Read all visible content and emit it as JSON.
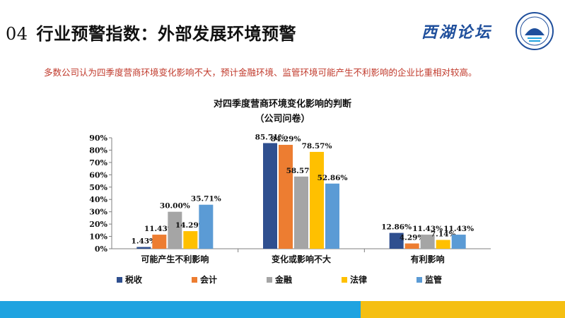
{
  "header": {
    "number": "04",
    "title": "行业预警指数：外部发展环境预警",
    "logo_text": "西湖论坛"
  },
  "subtitle": "多数公司认为四季度营商环境变化影响不大，预计金融环境、监管环境可能产生不利影响的企业比重相对较高。",
  "colors": {
    "税收": "#2f4f8f",
    "会计": "#ed7d31",
    "金融": "#a5a5a5",
    "法律": "#ffc000",
    "监管": "#5b9bd5",
    "band_blue": "#1fa3e0",
    "band_yellow": "#f5bf12"
  },
  "chart_data": {
    "type": "bar",
    "title": "对四季度营商环境变化影响的判断",
    "subtitle": "（公司问卷）",
    "categories": [
      "可能产生不利影响",
      "变化或影响不大",
      "有利影响"
    ],
    "series": [
      {
        "name": "税收",
        "values": [
          1.43,
          85.71,
          12.86
        ],
        "labels": [
          "1.43%",
          "85.71%",
          "12.86%"
        ]
      },
      {
        "name": "会计",
        "values": [
          11.43,
          84.29,
          4.29
        ],
        "labels": [
          "11.43%",
          "84.29%",
          "4.29%"
        ]
      },
      {
        "name": "金融",
        "values": [
          30.0,
          58.57,
          11.43
        ],
        "labels": [
          "30.00%",
          "58.57%",
          "11.43%"
        ]
      },
      {
        "name": "法律",
        "values": [
          14.29,
          78.57,
          7.14
        ],
        "labels": [
          "14.29%",
          "78.57%",
          "7.14%"
        ]
      },
      {
        "name": "监管",
        "values": [
          35.71,
          52.86,
          11.43
        ],
        "labels": [
          "35.71%",
          "52.86%",
          "11.43%"
        ]
      }
    ],
    "yticks": [
      "0%",
      "10%",
      "20%",
      "30%",
      "40%",
      "50%",
      "60%",
      "70%",
      "80%",
      "90%"
    ],
    "ylim": [
      0,
      90
    ],
    "xlabel": "",
    "ylabel": "",
    "grid": false,
    "legend_position": "bottom"
  }
}
